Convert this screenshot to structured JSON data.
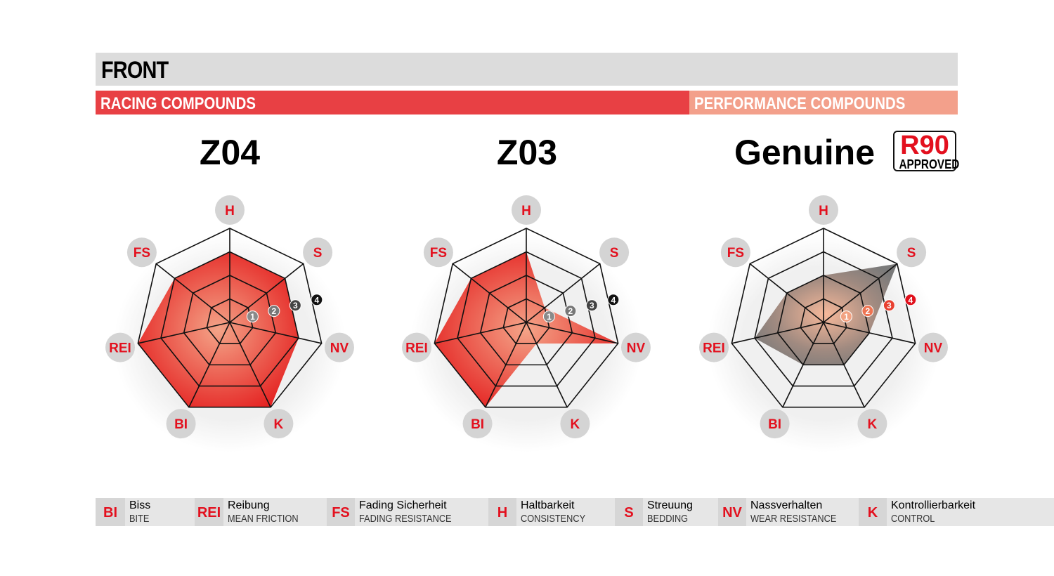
{
  "header": {
    "title": "FRONT",
    "racing_label": "RACING COMPOUNDS",
    "performance_label": "PERFORMANCE COMPOUNDS"
  },
  "badge": {
    "top": "R90",
    "bottom": "APPROVED"
  },
  "colors": {
    "red": "#e3101e",
    "racing_band": "#e84044",
    "performance_band": "#f3a08b",
    "header": "#dcdcdc"
  },
  "chart_data": [
    {
      "type": "radar",
      "title": "Z04",
      "axes": [
        "H",
        "S",
        "NV",
        "K",
        "BI",
        "REI",
        "FS"
      ],
      "range": [
        0,
        4
      ],
      "ring_labels": [
        "1",
        "2",
        "3",
        "4"
      ],
      "values": [
        3,
        3,
        3,
        4,
        4,
        4,
        3
      ],
      "fill": "red"
    },
    {
      "type": "radar",
      "title": "Z03",
      "axes": [
        "H",
        "S",
        "NV",
        "K",
        "BI",
        "REI",
        "FS"
      ],
      "range": [
        0,
        4
      ],
      "ring_labels": [
        "1",
        "2",
        "3",
        "4"
      ],
      "values": [
        3,
        1,
        4,
        1,
        4,
        4,
        3
      ],
      "fill": "red"
    },
    {
      "type": "radar",
      "title": "Genuine",
      "axes": [
        "H",
        "S",
        "NV",
        "K",
        "BI",
        "REI",
        "FS"
      ],
      "range": [
        0,
        4
      ],
      "ring_labels": [
        "1",
        "2",
        "3",
        "4"
      ],
      "values": [
        2,
        4,
        2,
        2,
        2,
        3,
        2
      ],
      "fill": "gray"
    }
  ],
  "legend": [
    {
      "abbr": "BI",
      "de": "Biss",
      "en": "BITE"
    },
    {
      "abbr": "REI",
      "de": "Reibung",
      "en": "MEAN FRICTION"
    },
    {
      "abbr": "FS",
      "de": "Fading Sicherheit",
      "en": "FADING RESISTANCE"
    },
    {
      "abbr": "H",
      "de": "Haltbarkeit",
      "en": "CONSISTENCY"
    },
    {
      "abbr": "S",
      "de": "Streuung",
      "en": "BEDDING"
    },
    {
      "abbr": "NV",
      "de": "Nassverhalten",
      "en": "WEAR RESISTANCE"
    },
    {
      "abbr": "K",
      "de": "Kontrollierbarkeit",
      "en": "CONTROL"
    }
  ]
}
